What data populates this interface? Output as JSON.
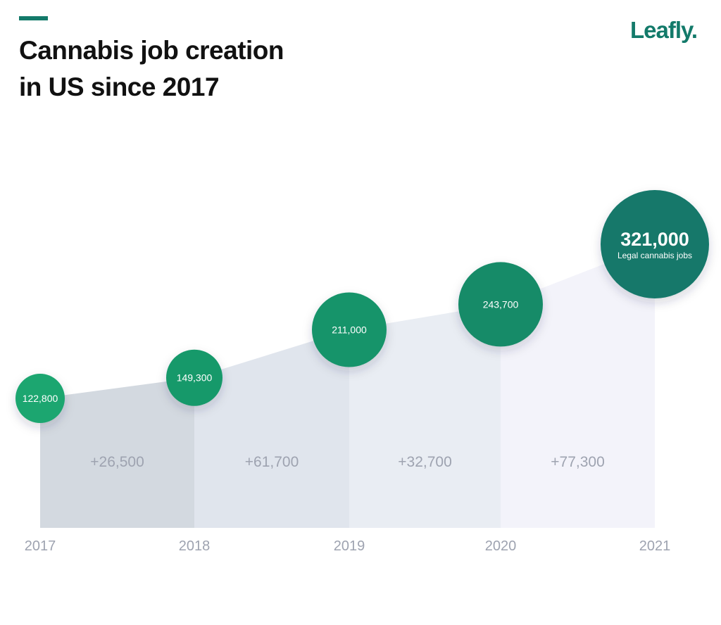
{
  "header": {
    "title_line1": "Cannabis job creation",
    "title_line2": "in US since 2017",
    "logo": "Leafly."
  },
  "colors": {
    "brand": "#137a6a",
    "circles": [
      "#1aa66f",
      "#18996a",
      "#16946a",
      "#158b67",
      "#12786b"
    ],
    "segments": [
      "#d3d9e0",
      "#e0e5ed",
      "#e9edf3",
      "#f3f3fa"
    ],
    "label": "#9ea3b0"
  },
  "chart_data": {
    "type": "area",
    "categories": [
      "2017",
      "2018",
      "2019",
      "2020",
      "2021"
    ],
    "values": [
      122800,
      149300,
      211000,
      243700,
      321000
    ],
    "value_labels": [
      "122,800",
      "149,300",
      "211,000",
      "243,700",
      "321,000"
    ],
    "highlight_caption": "Legal cannabis jobs",
    "increments": [
      "+26,500",
      "+61,700",
      "+32,700",
      "+77,300"
    ],
    "grid": false,
    "legend": "none"
  }
}
